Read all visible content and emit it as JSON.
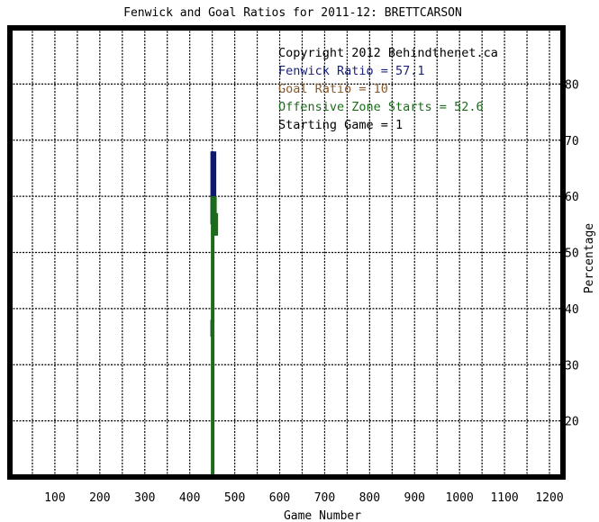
{
  "chart_data": {
    "type": "line",
    "title": "Fenwick and Goal Ratios for 2011-12: BRETTCARSON",
    "xlabel": "Game Number",
    "ylabel": "Percentage",
    "xlim": [
      0,
      1230
    ],
    "ylim": [
      10,
      90
    ],
    "x_ticks": [
      100,
      200,
      300,
      400,
      500,
      600,
      700,
      800,
      900,
      1000,
      1100,
      1200
    ],
    "y_ticks": [
      20,
      30,
      40,
      50,
      60,
      70,
      80
    ],
    "grid": true,
    "annotations": [
      {
        "text": "Copyright 2012 Behindthenet.ca",
        "color": "#000000"
      },
      {
        "text": "Fenwick Ratio = 57.1",
        "color": "#1a237e"
      },
      {
        "text": "Goal Ratio = 10",
        "color": "#8b5a2b"
      },
      {
        "text": "Offensive Zone Starts = 52.6",
        "color": "#1b6b1b"
      },
      {
        "text": "Starting Game = 1",
        "color": "#000000"
      }
    ],
    "series": [
      {
        "color": "#0d1a6e",
        "segments": [
          [
            [
              450,
              68
            ],
            [
              450,
              55
            ]
          ],
          [
            [
              455,
              68
            ],
            [
              455,
              55
            ]
          ],
          [
            [
              450,
              38
            ],
            [
              450,
              35
            ]
          ]
        ]
      },
      {
        "color": "#1b6b1b",
        "segments": [
          [
            [
              451,
              60
            ],
            [
              451,
              10
            ]
          ],
          [
            [
              456,
              60
            ],
            [
              456,
              53
            ]
          ],
          [
            [
              459,
              57
            ],
            [
              459,
              53
            ]
          ]
        ]
      }
    ]
  }
}
